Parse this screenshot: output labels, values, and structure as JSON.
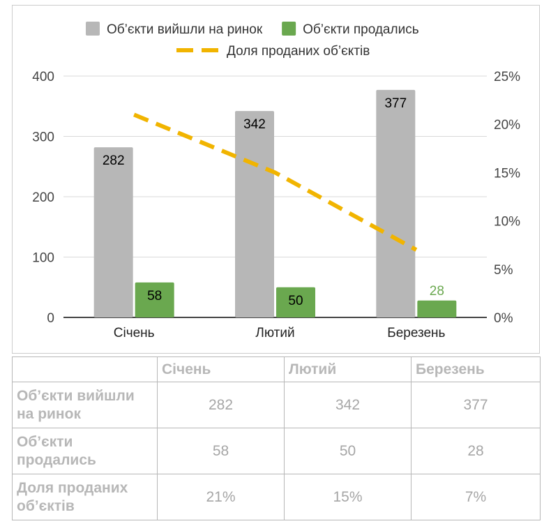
{
  "chart_data": {
    "type": "bar",
    "categories": [
      "Січень",
      "Лютий",
      "Березень"
    ],
    "series": [
      {
        "name": "Об’єкти вийшли на ринок",
        "kind": "bar",
        "axis": "left",
        "color": "#b7b7b7",
        "values": [
          282,
          342,
          377
        ],
        "value_labels": [
          "282",
          "342",
          "377"
        ],
        "label_color": "#000000"
      },
      {
        "name": "Об’єкти продались",
        "kind": "bar",
        "axis": "left",
        "color": "#6aa84f",
        "values": [
          58,
          50,
          28
        ],
        "value_labels": [
          "58",
          "50",
          "28"
        ],
        "label_color": "#000000",
        "last_label_color": "#6aa84f"
      },
      {
        "name": "Доля проданих об’єктів",
        "kind": "line",
        "axis": "right",
        "color": "#f1b400",
        "dashed": true,
        "values": [
          0.21,
          0.15,
          0.07
        ]
      }
    ],
    "y_left": {
      "min": 0,
      "max": 400,
      "ticks": [
        0,
        100,
        200,
        300,
        400
      ],
      "tick_labels": [
        "0",
        "100",
        "200",
        "300",
        "400"
      ]
    },
    "y_right": {
      "min": 0,
      "max": 0.25,
      "ticks": [
        0,
        0.05,
        0.1,
        0.15,
        0.2,
        0.25
      ],
      "tick_labels": [
        "0%",
        "5%",
        "10%",
        "15%",
        "20%",
        "25%"
      ]
    },
    "grid": true,
    "legend_placement": "top"
  },
  "table": {
    "header": [
      "",
      "Січень",
      "Лютий",
      "Березень"
    ],
    "rows": [
      {
        "label": "Об’єкти вийшли на ринок",
        "cells": [
          "282",
          "342",
          "377"
        ]
      },
      {
        "label": "Об’єкти продались",
        "cells": [
          "58",
          "50",
          "28"
        ]
      },
      {
        "label": "Доля проданих об’єктів",
        "cells": [
          "21%",
          "15%",
          "7%"
        ]
      }
    ]
  }
}
